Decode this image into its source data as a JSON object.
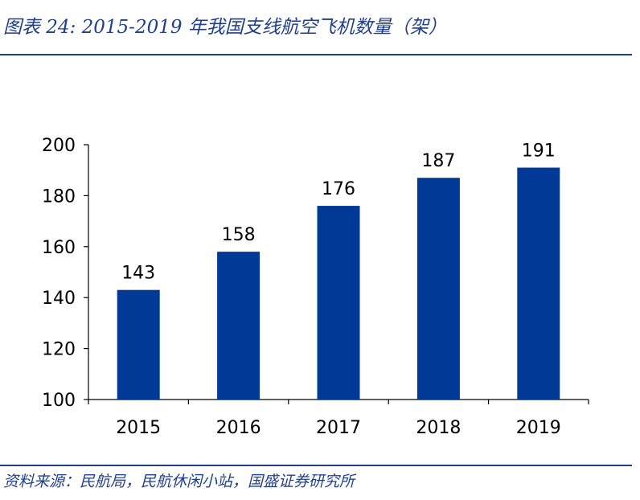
{
  "header": {
    "title": "图表 24: 2015-2019 年我国支线航空飞机数量（架）"
  },
  "footer": {
    "source": "资料来源：民航局，民航休闲小站，国盛证券研究所"
  },
  "colors": {
    "bar": "#003a96",
    "title": "#1f3f8c",
    "axis": "#000000"
  },
  "chart_data": {
    "type": "bar",
    "title": "",
    "xlabel": "",
    "ylabel": "",
    "categories": [
      "2015",
      "2016",
      "2017",
      "2018",
      "2019"
    ],
    "values": [
      143,
      158,
      176,
      187,
      191
    ],
    "ylim": [
      100,
      200
    ],
    "yticks": [
      100,
      120,
      140,
      160,
      180,
      200
    ],
    "data_labels": true,
    "grid": false,
    "legend": "none"
  }
}
